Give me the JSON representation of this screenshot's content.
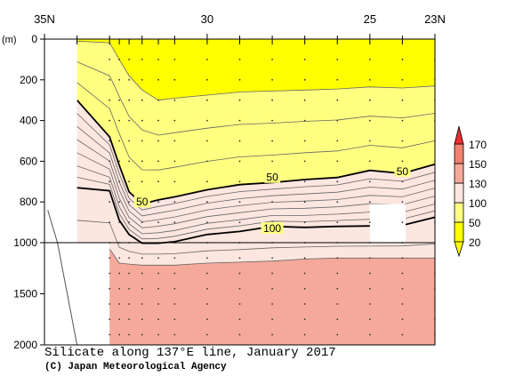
{
  "chart_data": {
    "type": "contour-section",
    "title": "Silicate along 137°E line, January 2017",
    "credit": "(C) Japan Meteorological Agency",
    "xaxis": {
      "ticklabels": [
        {
          "lat": 35,
          "label": "35N"
        },
        {
          "lat": 30,
          "label": "30"
        },
        {
          "lat": 25,
          "label": "25"
        },
        {
          "lat": 23,
          "label": "23N"
        }
      ],
      "range": [
        35,
        23
      ]
    },
    "yaxis": {
      "unit": "(m)",
      "upper_ticks": [
        0,
        200,
        400,
        600,
        800,
        1000
      ],
      "lower_ticks": [
        1500,
        2000
      ],
      "range": [
        0,
        2000
      ],
      "scale_break_depth": 1000
    },
    "stations_lat": [
      34,
      33,
      32.7,
      32.4,
      32,
      31.5,
      31,
      30,
      29,
      28,
      27,
      26,
      25,
      24,
      23
    ],
    "colorbar": {
      "levels": [
        20,
        50,
        100,
        130,
        150,
        170
      ],
      "labels": [
        "20",
        "50",
        "100",
        "130",
        "150",
        "170"
      ],
      "colors": [
        "#ffff00",
        "#ffff80",
        "#fce6e0",
        "#f5a99a",
        "#f08070",
        "#e83030"
      ]
    },
    "contour_labels": [
      {
        "text": "50",
        "lat": 32.0,
        "depth": 800
      },
      {
        "text": "50",
        "lat": 28.0,
        "depth": 680
      },
      {
        "text": "50",
        "lat": 24.0,
        "depth": 650
      },
      {
        "text": "100",
        "lat": 28.0,
        "depth": 930
      }
    ],
    "bold_contours": [
      {
        "value": 50,
        "points": [
          [
            34.0,
            300
          ],
          [
            33.0,
            480
          ],
          [
            32.7,
            620
          ],
          [
            32.4,
            750
          ],
          [
            32.0,
            810
          ],
          [
            31.5,
            790
          ],
          [
            31.0,
            775
          ],
          [
            30.0,
            740
          ],
          [
            29.0,
            715
          ],
          [
            28.0,
            705
          ],
          [
            27.0,
            690
          ],
          [
            26.0,
            680
          ],
          [
            25.0,
            645
          ],
          [
            24.0,
            660
          ],
          [
            23.0,
            615
          ]
        ]
      },
      {
        "value": 100,
        "points": [
          [
            34.0,
            730
          ],
          [
            33.0,
            745
          ],
          [
            32.7,
            890
          ],
          [
            32.4,
            960
          ],
          [
            32.0,
            1005
          ],
          [
            31.5,
            1005
          ],
          [
            31.0,
            995
          ],
          [
            30.0,
            960
          ],
          [
            29.0,
            945
          ],
          [
            28.0,
            920
          ],
          [
            27.0,
            925
          ],
          [
            26.0,
            920
          ],
          [
            25.0,
            918
          ],
          [
            24.0,
            915
          ],
          [
            23.0,
            875
          ]
        ]
      }
    ],
    "masked_boxes": [
      {
        "lat": [
          25.0,
          23.9
        ],
        "depth": [
          810,
          1000
        ]
      }
    ],
    "no_data": [
      {
        "lat": [
          35,
          34
        ],
        "depth": [
          0,
          2000
        ]
      },
      {
        "lat": [
          35,
          33
        ],
        "depth": [
          1000,
          2000
        ]
      }
    ],
    "bathymetry_line": [
      [
        34.9,
        840
      ],
      [
        34.6,
        1000
      ],
      [
        34.0,
        2000
      ]
    ]
  }
}
